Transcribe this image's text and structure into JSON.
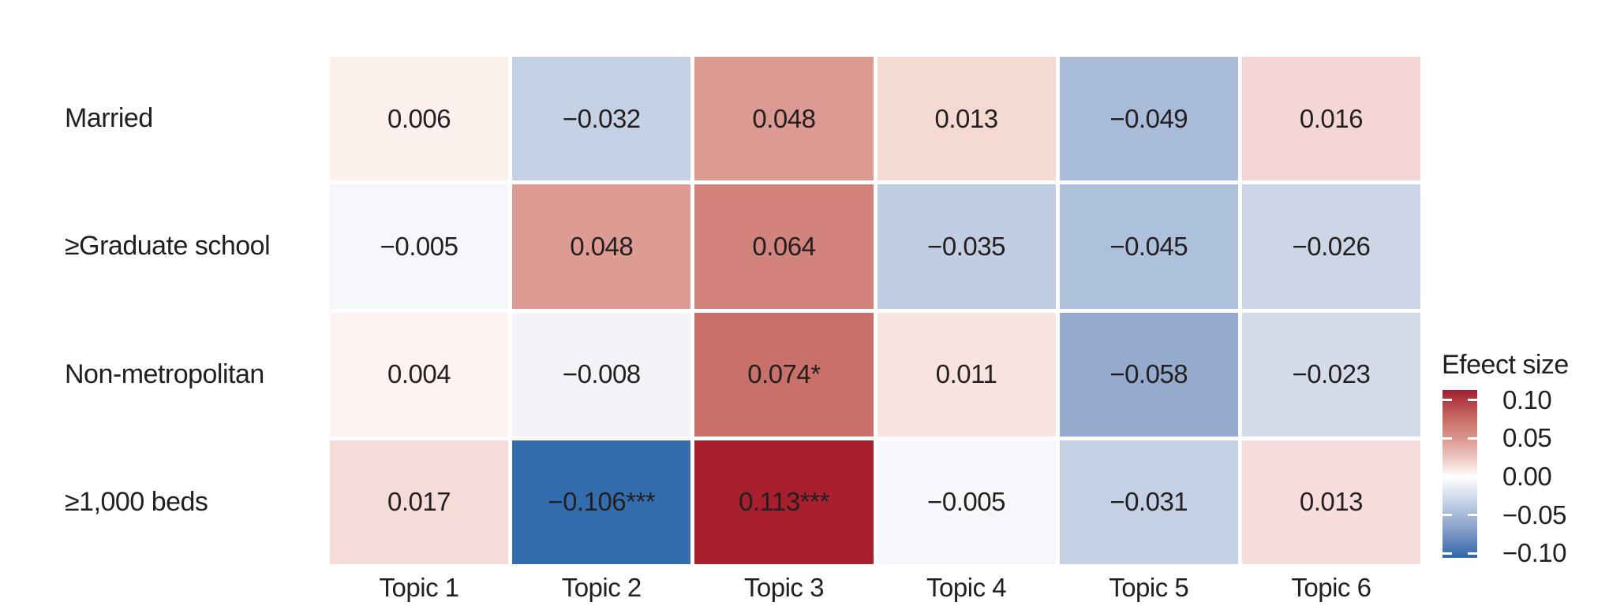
{
  "figure": {
    "background": "#ffffff",
    "text_color": "#231f20"
  },
  "chart_data": {
    "type": "heatmap",
    "rows": [
      "Married",
      "≥Graduate school",
      "Non-metropolitan",
      "≥1,000 beds"
    ],
    "columns": [
      "Topic 1",
      "Topic 2",
      "Topic 3",
      "Topic 4",
      "Topic 5",
      "Topic 6"
    ],
    "values": [
      [
        0.006,
        -0.032,
        0.048,
        0.013,
        -0.049,
        0.016
      ],
      [
        -0.005,
        0.048,
        0.064,
        -0.035,
        -0.045,
        -0.026
      ],
      [
        0.004,
        -0.008,
        0.074,
        0.011,
        -0.058,
        -0.023
      ],
      [
        0.017,
        -0.106,
        0.113,
        -0.005,
        -0.031,
        0.013
      ]
    ],
    "cell_labels": [
      [
        "0.006",
        "−0.032",
        "0.048",
        "0.013",
        "−0.049",
        "0.016"
      ],
      [
        "−0.005",
        "0.048",
        "0.064",
        "−0.035",
        "−0.045",
        "−0.026"
      ],
      [
        "0.004",
        "−0.008",
        "0.074*",
        "0.011",
        "−0.058",
        "−0.023"
      ],
      [
        "0.017",
        "−0.106***",
        "0.113***",
        "−0.005",
        "−0.031",
        "0.013"
      ]
    ],
    "cell_colors": [
      [
        "#fdf1ee",
        "#c5d1e4",
        "#dc9a93",
        "#f5d9d3",
        "#a9bcd9",
        "#f4d7d4"
      ],
      [
        "#f5f7fa",
        "#dd9b94",
        "#d2837c",
        "#c0cde2",
        "#aec1dc",
        "#ccd6e7"
      ],
      [
        "#fdf4f2",
        "#f2f4f8",
        "#c97169",
        "#f9e3df",
        "#95abce",
        "#d4dcea"
      ],
      [
        "#f6dcd8",
        "#336dae",
        "#a81f2d",
        "#f5f7fa",
        "#c4d0e3",
        "#f7dedc"
      ]
    ],
    "legend": {
      "title": "Efeect size",
      "tick_labels": [
        "0.10",
        "0.05",
        "0.00",
        "−0.05",
        "−0.10"
      ],
      "tick_values": [
        0.1,
        0.05,
        0.0,
        -0.05,
        -0.1
      ],
      "domain_max": 0.113,
      "domain_min": -0.106,
      "gradient_stops": [
        {
          "pos": 0,
          "color": "#a22030"
        },
        {
          "pos": 18,
          "color": "#c97169"
        },
        {
          "pos": 30,
          "color": "#dc9a93"
        },
        {
          "pos": 42,
          "color": "#f0d0cb"
        },
        {
          "pos": 51.5,
          "color": "#ffffff"
        },
        {
          "pos": 61,
          "color": "#dde4ef"
        },
        {
          "pos": 72,
          "color": "#aec1dc"
        },
        {
          "pos": 80,
          "color": "#93a9ce"
        },
        {
          "pos": 88,
          "color": "#6e8dc0"
        },
        {
          "pos": 100,
          "color": "#2e68ab"
        }
      ]
    }
  }
}
